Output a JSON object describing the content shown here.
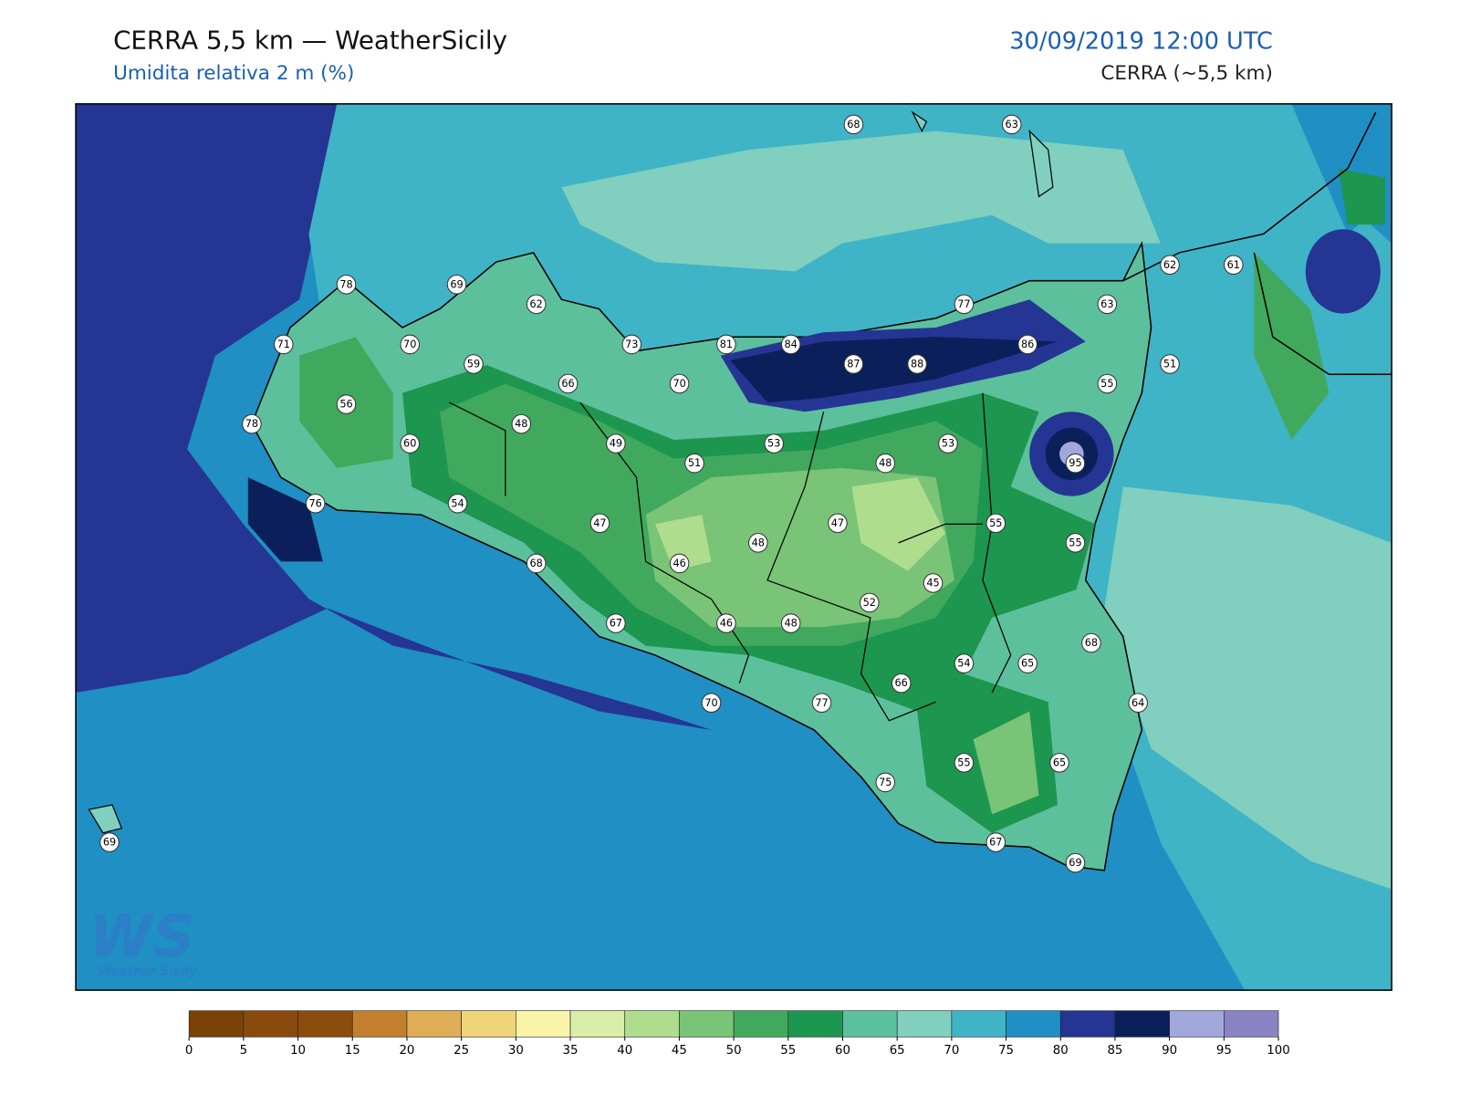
{
  "header": {
    "title": "CERRA 5,5 km — WeatherSicily",
    "subtitle": "Umidita relativa 2 m (%)",
    "datetime": "30/09/2019 12:00 UTC",
    "model": "CERRA (~5,5 km)"
  },
  "stations": [
    68,
    63,
    78,
    69,
    62,
    62,
    61,
    77,
    63,
    71,
    70,
    73,
    81,
    84,
    86,
    59,
    87,
    88,
    51,
    66,
    70,
    55,
    56,
    48,
    78,
    60,
    49,
    53,
    53,
    48,
    51,
    95,
    54,
    76,
    47,
    47,
    55,
    48,
    55,
    68,
    46,
    45,
    52,
    67,
    46,
    48,
    68,
    54,
    65,
    66,
    70,
    77,
    64,
    75,
    55,
    65,
    69,
    67,
    69
  ],
  "logo": {
    "mark": "WS",
    "name": "Weather Sicily"
  },
  "colorbar": {
    "ticks": [
      0,
      5,
      10,
      15,
      20,
      25,
      30,
      35,
      40,
      45,
      50,
      55,
      60,
      65,
      70,
      75,
      80,
      85,
      90,
      95,
      100
    ],
    "colors": [
      "#7a4108",
      "#8a4a0d",
      "#8c4c0e",
      "#c47f2e",
      "#e0ad57",
      "#f0d47a",
      "#f8f5a8",
      "#d9eea8",
      "#aedd8e",
      "#79c477",
      "#41a95d",
      "#1d9650",
      "#5dc09c",
      "#80cfbf",
      "#3fb4c6",
      "#1f8fc4",
      "#253593",
      "#0b1f5a",
      "#a2a8dc",
      "#8a84c4"
    ]
  }
}
